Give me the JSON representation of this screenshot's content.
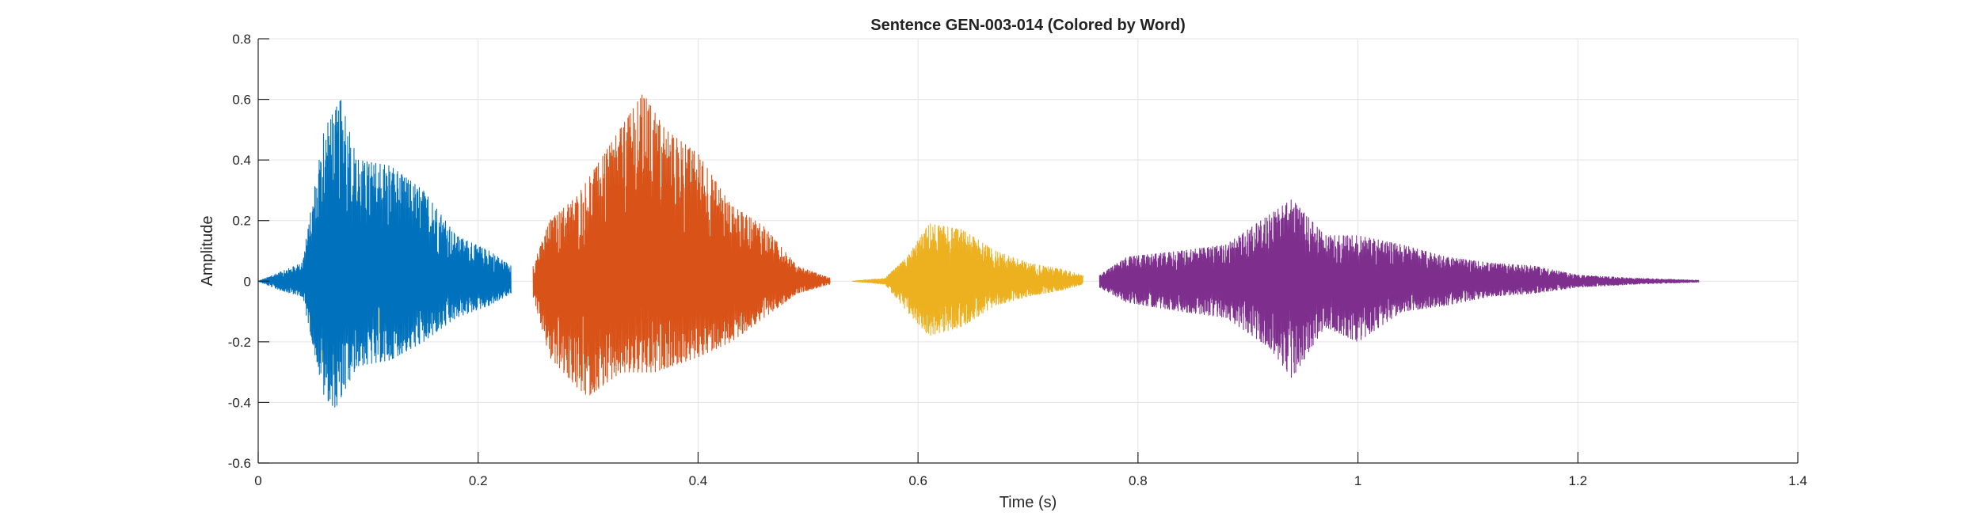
{
  "chart_data": {
    "type": "line",
    "title": "Sentence GEN-003-014 (Colored by Word)",
    "xlabel": "Time (s)",
    "ylabel": "Amplitude",
    "xlim": [
      0,
      1.4
    ],
    "ylim": [
      -0.6,
      0.8
    ],
    "xticks": [
      0,
      0.2,
      0.4,
      0.6,
      0.8,
      1,
      1.2,
      1.4
    ],
    "xtick_labels": [
      "0",
      "0.2",
      "0.4",
      "0.6",
      "0.8",
      "1",
      "1.2",
      "1.4"
    ],
    "yticks": [
      -0.6,
      -0.4,
      -0.2,
      0,
      0.2,
      0.4,
      0.6,
      0.8
    ],
    "ytick_labels": [
      "-0.6",
      "-0.4",
      "-0.2",
      "0",
      "0.2",
      "0.4",
      "0.6",
      "0.8"
    ],
    "grid": true,
    "series": [
      {
        "color": "#0072BD",
        "t_start": 0.0,
        "t_end": 0.23,
        "envelope": [
          [
            0.0,
            0.0
          ],
          [
            0.02,
            0.03
          ],
          [
            0.04,
            0.06
          ],
          [
            0.06,
            0.5
          ],
          [
            0.075,
            0.6
          ],
          [
            0.09,
            0.4
          ],
          [
            0.12,
            0.38
          ],
          [
            0.15,
            0.3
          ],
          [
            0.18,
            0.15
          ],
          [
            0.21,
            0.1
          ],
          [
            0.23,
            0.05
          ]
        ],
        "min_envelope": [
          [
            0.0,
            0.0
          ],
          [
            0.02,
            -0.03
          ],
          [
            0.04,
            -0.05
          ],
          [
            0.06,
            -0.38
          ],
          [
            0.07,
            -0.42
          ],
          [
            0.09,
            -0.28
          ],
          [
            0.12,
            -0.26
          ],
          [
            0.15,
            -0.2
          ],
          [
            0.18,
            -0.12
          ],
          [
            0.21,
            -0.08
          ],
          [
            0.23,
            -0.04
          ]
        ]
      },
      {
        "color": "#D95319",
        "t_start": 0.25,
        "t_end": 0.52,
        "envelope": [
          [
            0.25,
            0.05
          ],
          [
            0.265,
            0.2
          ],
          [
            0.29,
            0.28
          ],
          [
            0.32,
            0.45
          ],
          [
            0.35,
            0.62
          ],
          [
            0.37,
            0.5
          ],
          [
            0.4,
            0.42
          ],
          [
            0.43,
            0.25
          ],
          [
            0.46,
            0.18
          ],
          [
            0.49,
            0.05
          ],
          [
            0.52,
            0.01
          ]
        ],
        "min_envelope": [
          [
            0.25,
            -0.05
          ],
          [
            0.265,
            -0.25
          ],
          [
            0.29,
            -0.35
          ],
          [
            0.3,
            -0.38
          ],
          [
            0.33,
            -0.3
          ],
          [
            0.36,
            -0.3
          ],
          [
            0.4,
            -0.25
          ],
          [
            0.43,
            -0.2
          ],
          [
            0.46,
            -0.12
          ],
          [
            0.49,
            -0.04
          ],
          [
            0.52,
            -0.01
          ]
        ]
      },
      {
        "color": "#EDB120",
        "t_start": 0.54,
        "t_end": 0.75,
        "envelope": [
          [
            0.54,
            0.0
          ],
          [
            0.57,
            0.01
          ],
          [
            0.59,
            0.08
          ],
          [
            0.61,
            0.19
          ],
          [
            0.64,
            0.17
          ],
          [
            0.67,
            0.1
          ],
          [
            0.7,
            0.06
          ],
          [
            0.73,
            0.04
          ],
          [
            0.75,
            0.02
          ]
        ],
        "min_envelope": [
          [
            0.54,
            0.0
          ],
          [
            0.57,
            -0.01
          ],
          [
            0.59,
            -0.1
          ],
          [
            0.61,
            -0.18
          ],
          [
            0.64,
            -0.15
          ],
          [
            0.67,
            -0.08
          ],
          [
            0.7,
            -0.05
          ],
          [
            0.73,
            -0.03
          ],
          [
            0.75,
            -0.01
          ]
        ]
      },
      {
        "color": "#7E2F8E",
        "t_start": 0.765,
        "t_end": 1.31,
        "envelope": [
          [
            0.765,
            0.02
          ],
          [
            0.79,
            0.08
          ],
          [
            0.84,
            0.1
          ],
          [
            0.88,
            0.12
          ],
          [
            0.92,
            0.22
          ],
          [
            0.94,
            0.27
          ],
          [
            0.97,
            0.15
          ],
          [
            1.0,
            0.15
          ],
          [
            1.04,
            0.12
          ],
          [
            1.08,
            0.08
          ],
          [
            1.12,
            0.06
          ],
          [
            1.16,
            0.05
          ],
          [
            1.2,
            0.02
          ],
          [
            1.25,
            0.01
          ],
          [
            1.31,
            0.003
          ]
        ],
        "min_envelope": [
          [
            0.765,
            -0.02
          ],
          [
            0.79,
            -0.07
          ],
          [
            0.84,
            -0.1
          ],
          [
            0.88,
            -0.12
          ],
          [
            0.92,
            -0.22
          ],
          [
            0.94,
            -0.32
          ],
          [
            0.97,
            -0.15
          ],
          [
            1.0,
            -0.2
          ],
          [
            1.04,
            -0.1
          ],
          [
            1.08,
            -0.08
          ],
          [
            1.12,
            -0.05
          ],
          [
            1.16,
            -0.04
          ],
          [
            1.2,
            -0.02
          ],
          [
            1.25,
            -0.01
          ],
          [
            1.31,
            -0.003
          ]
        ]
      }
    ]
  }
}
